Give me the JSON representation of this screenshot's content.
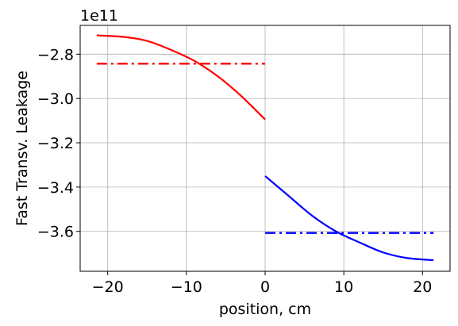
{
  "chart_data": {
    "type": "line",
    "title": "",
    "xlabel": "position, cm",
    "ylabel": "Fast Transv. Leakage",
    "y_offset_label": "1e11",
    "xlim": [
      -23.5,
      23.5
    ],
    "ylim": [
      -3.78,
      -2.67
    ],
    "x_ticks": [
      -20,
      -10,
      0,
      10,
      20
    ],
    "x_tick_labels": [
      "−20",
      "−10",
      "0",
      "10",
      "20"
    ],
    "y_ticks": [
      -3.6,
      -3.4,
      -3.2,
      -3.0,
      -2.8
    ],
    "y_tick_labels": [
      "−3.6",
      "−3.4",
      "−3.2",
      "−3.0",
      "−2.8"
    ],
    "grid": true,
    "series": [
      {
        "color": "#ff0000",
        "style": "solid",
        "x": [
          -21.4,
          -18,
          -15,
          -12,
          -9,
          -6,
          -3,
          0
        ],
        "y": [
          -2.715,
          -2.722,
          -2.74,
          -2.78,
          -2.83,
          -2.9,
          -2.99,
          -3.095
        ]
      },
      {
        "color": "#ff0000",
        "style": "dashdot",
        "x": [
          -21.4,
          0
        ],
        "y": [
          -2.843,
          -2.843
        ]
      },
      {
        "color": "#0000ff",
        "style": "solid",
        "x": [
          0,
          3,
          6,
          9,
          12,
          15,
          18,
          21.4
        ],
        "y": [
          -3.35,
          -3.44,
          -3.53,
          -3.6,
          -3.65,
          -3.695,
          -3.72,
          -3.73
        ]
      },
      {
        "color": "#0000ff",
        "style": "dashdot",
        "x": [
          0,
          21.4
        ],
        "y": [
          -3.607,
          -3.607
        ]
      }
    ]
  }
}
